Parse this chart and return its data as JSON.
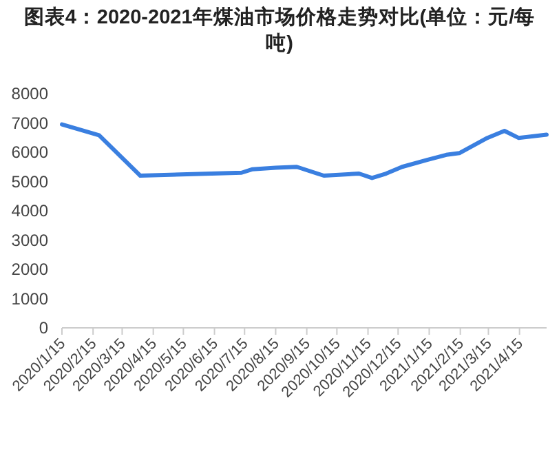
{
  "chart_data": {
    "type": "line",
    "title": "图表4：2020-2021年煤油市场价格走势对比(单位：元/每吨)",
    "series": [
      {
        "color": "#3a7fe0",
        "x": [
          "2020-01-15",
          "2020-02-21",
          "2020-04-02",
          "2020-07-12",
          "2020-07-23",
          "2020-08-15",
          "2020-09-05",
          "2020-10-02",
          "2020-11-06",
          "2020-11-19",
          "2020-12-03",
          "2020-12-19",
          "2021-01-13",
          "2021-02-01",
          "2021-02-14",
          "2021-03-14",
          "2021-03-31",
          "2021-04-14",
          "2021-05-12"
        ],
        "values": [
          6950,
          6580,
          5200,
          5300,
          5420,
          5470,
          5500,
          5200,
          5270,
          5120,
          5270,
          5500,
          5740,
          5910,
          5970,
          6490,
          6730,
          6490,
          6600
        ]
      }
    ],
    "xlim": [
      "2020-01-15",
      "2021-05-12"
    ],
    "xticks": [
      {
        "value": "2020-01-15",
        "label": "2020/1/15"
      },
      {
        "value": "2020-02-15",
        "label": "2020/2/15"
      },
      {
        "value": "2020-03-15",
        "label": "2020/3/15"
      },
      {
        "value": "2020-04-15",
        "label": "2020/4/15"
      },
      {
        "value": "2020-05-15",
        "label": "2020/5/15"
      },
      {
        "value": "2020-06-15",
        "label": "2020/6/15"
      },
      {
        "value": "2020-07-15",
        "label": "2020/7/15"
      },
      {
        "value": "2020-08-15",
        "label": "2020/8/15"
      },
      {
        "value": "2020-09-15",
        "label": "2020/9/15"
      },
      {
        "value": "2020-10-15",
        "label": "2020/10/15"
      },
      {
        "value": "2020-11-15",
        "label": "2020/11/15"
      },
      {
        "value": "2020-12-15",
        "label": "2020/12/15"
      },
      {
        "value": "2021-01-15",
        "label": "2021/1/15"
      },
      {
        "value": "2021-02-15",
        "label": "2021/2/15"
      },
      {
        "value": "2021-03-15",
        "label": "2021/3/15"
      },
      {
        "value": "2021-04-15",
        "label": "2021/4/15"
      }
    ],
    "ylim": [
      0,
      8000
    ],
    "yticks": [
      0,
      1000,
      2000,
      3000,
      4000,
      5000,
      6000,
      7000,
      8000
    ],
    "marker": "none",
    "line_style": "solid"
  }
}
